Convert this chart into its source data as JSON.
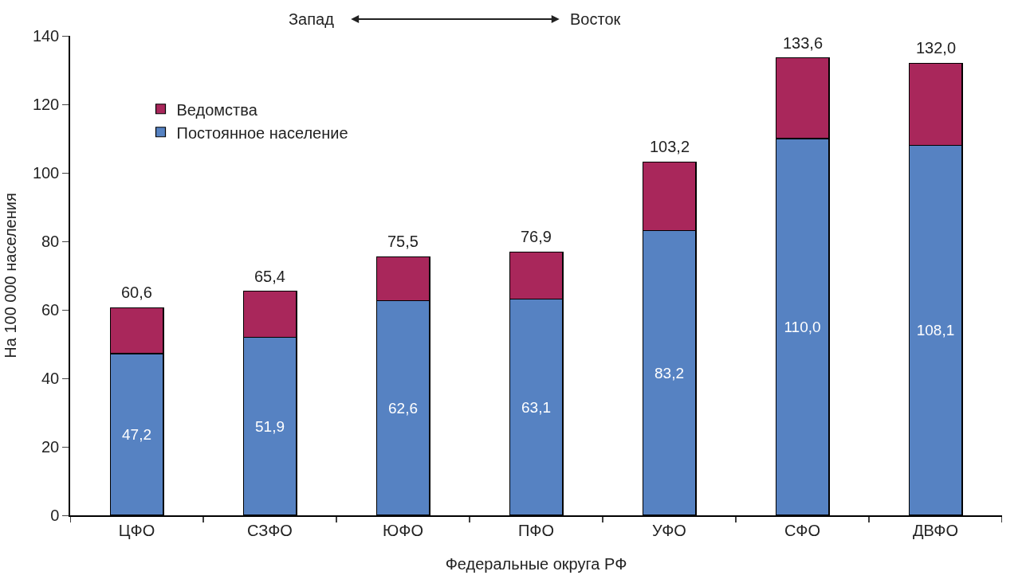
{
  "chart_data": {
    "type": "bar",
    "stacked": true,
    "xlabel": "Федеральные округа РФ",
    "ylabel": "На 100 000 населения",
    "categories": [
      "ЦФО",
      "СЗФО",
      "ЮФО",
      "ПФО",
      "УФО",
      "СФО",
      "ДВФО"
    ],
    "series": [
      {
        "name": "Постоянное население",
        "color": "#5682c2",
        "values": [
          47.2,
          51.9,
          62.6,
          63.1,
          83.2,
          110.0,
          108.1
        ],
        "value_labels": [
          "47,2",
          "51,9",
          "62,6",
          "63,1",
          "83,2",
          "110,0",
          "108,1"
        ]
      },
      {
        "name": "Ведомства",
        "color": "#a9275b",
        "values": [
          13.4,
          13.5,
          12.9,
          13.8,
          20.0,
          23.6,
          23.9
        ]
      }
    ],
    "totals": [
      "60,6",
      "65,4",
      "75,5",
      "76,9",
      "103,2",
      "133,6",
      "132,0"
    ],
    "ylim": [
      0,
      140
    ],
    "yticks": [
      0,
      20,
      40,
      60,
      80,
      100,
      120,
      140
    ],
    "annotations": [
      "Запад",
      "Восток"
    ],
    "legend": "top left"
  }
}
